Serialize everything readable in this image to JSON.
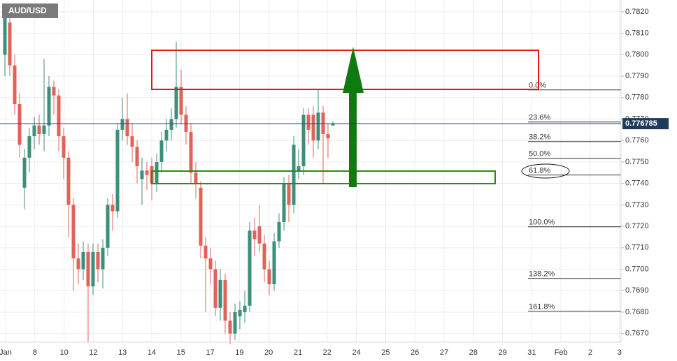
{
  "chart_data": {
    "type": "candlestick",
    "title": "AUD/USD",
    "up_color": "#3d8f7b",
    "down_color": "#e0635b",
    "grid": true,
    "ylim": [
      0.7666,
      0.78255
    ],
    "yticks": [
      {
        "value": 0.767,
        "label": "0.7670"
      },
      {
        "value": 0.768,
        "label": "0.7680"
      },
      {
        "value": 0.769,
        "label": "0.7690"
      },
      {
        "value": 0.77,
        "label": "0.7700"
      },
      {
        "value": 0.771,
        "label": "0.7710"
      },
      {
        "value": 0.772,
        "label": "0.7720"
      },
      {
        "value": 0.773,
        "label": "0.7730"
      },
      {
        "value": 0.774,
        "label": "0.7740"
      },
      {
        "value": 0.775,
        "label": "0.7750"
      },
      {
        "value": 0.776,
        "label": "0.7760"
      },
      {
        "value": 0.777,
        "label": "0.7770"
      },
      {
        "value": 0.778,
        "label": "0.7780"
      },
      {
        "value": 0.779,
        "label": "0.7790"
      },
      {
        "value": 0.78,
        "label": "0.7800"
      },
      {
        "value": 0.781,
        "label": "0.7810"
      },
      {
        "value": 0.782,
        "label": "0.7820"
      }
    ],
    "x_labels": [
      "Jan",
      "8",
      "10",
      "12",
      "13",
      "14",
      "15",
      "17",
      "19",
      "20",
      "21",
      "22",
      "24",
      "25",
      "26",
      "27",
      "28",
      "29",
      "31",
      "Feb",
      "2",
      "3"
    ],
    "open": [
      0.78,
      0.7815,
      0.7795,
      0.7777,
      0.7738,
      0.7752,
      0.7762,
      0.7767,
      0.7763,
      0.7767,
      0.7785,
      0.7781,
      0.7762,
      0.7752,
      0.773,
      0.7705,
      0.77,
      0.7708,
      0.7692,
      0.7708,
      0.77,
      0.771,
      0.773,
      0.7727,
      0.7765,
      0.777,
      0.7762,
      0.7757,
      0.7742,
      0.7746,
      0.7748,
      0.774,
      0.775,
      0.776,
      0.7765,
      0.777,
      0.7785,
      0.7772,
      0.7764,
      0.7745,
      0.7738,
      0.7711,
      0.7705,
      0.77,
      0.7682,
      0.7695,
      0.7676,
      0.767,
      0.7678,
      0.768,
      0.7683,
      0.7718,
      0.772,
      0.7712,
      0.77,
      0.7693,
      0.7713,
      0.7722,
      0.774,
      0.773,
      0.7746,
      0.7748,
      0.7772,
      0.7772,
      0.776,
      0.7773,
      0.7763,
      0.7767
    ],
    "high": [
      0.782,
      0.782,
      0.78,
      0.7782,
      0.7756,
      0.7766,
      0.7771,
      0.7772,
      0.7798,
      0.779,
      0.7788,
      0.7784,
      0.7766,
      0.7755,
      0.7733,
      0.7712,
      0.7713,
      0.7712,
      0.7712,
      0.7712,
      0.7714,
      0.7733,
      0.7735,
      0.7768,
      0.778,
      0.7782,
      0.7768,
      0.776,
      0.7752,
      0.775,
      0.7752,
      0.7754,
      0.7764,
      0.777,
      0.7775,
      0.7806,
      0.7793,
      0.7776,
      0.7768,
      0.775,
      0.7741,
      0.7715,
      0.771,
      0.7704,
      0.77,
      0.7698,
      0.768,
      0.7684,
      0.7685,
      0.769,
      0.7722,
      0.7724,
      0.773,
      0.7716,
      0.7704,
      0.7717,
      0.7726,
      0.7743,
      0.7744,
      0.7762,
      0.7756,
      0.7775,
      0.7775,
      0.7776,
      0.7784,
      0.7776,
      0.7768,
      0.7769
    ],
    "low": [
      0.779,
      0.779,
      0.7772,
      0.7752,
      0.7728,
      0.7745,
      0.7756,
      0.7758,
      0.7755,
      0.7762,
      0.7772,
      0.7755,
      0.7742,
      0.7715,
      0.769,
      0.7693,
      0.7695,
      0.7666,
      0.7688,
      0.7694,
      0.7691,
      0.7706,
      0.7718,
      0.7724,
      0.776,
      0.7758,
      0.775,
      0.774,
      0.773,
      0.7737,
      0.7732,
      0.7736,
      0.7745,
      0.7755,
      0.776,
      0.7766,
      0.7768,
      0.7758,
      0.774,
      0.7733,
      0.7705,
      0.768,
      0.7693,
      0.7678,
      0.7676,
      0.767,
      0.7665,
      0.7667,
      0.7672,
      0.7675,
      0.768,
      0.7706,
      0.7708,
      0.7694,
      0.7688,
      0.769,
      0.771,
      0.7718,
      0.7722,
      0.7726,
      0.7742,
      0.7744,
      0.7758,
      0.7752,
      0.7756,
      0.774,
      0.7752,
      0.7767
    ],
    "close": [
      0.7818,
      0.7795,
      0.7777,
      0.7758,
      0.7752,
      0.7762,
      0.7767,
      0.7763,
      0.7767,
      0.7785,
      0.7781,
      0.7762,
      0.7752,
      0.773,
      0.7705,
      0.77,
      0.7708,
      0.7692,
      0.7708,
      0.77,
      0.771,
      0.773,
      0.7727,
      0.7765,
      0.777,
      0.7762,
      0.7757,
      0.7748,
      0.7746,
      0.7744,
      0.774,
      0.775,
      0.776,
      0.7765,
      0.777,
      0.7785,
      0.7772,
      0.7764,
      0.7745,
      0.774,
      0.7711,
      0.7705,
      0.77,
      0.7682,
      0.7695,
      0.7676,
      0.767,
      0.768,
      0.7681,
      0.7683,
      0.7718,
      0.7714,
      0.7712,
      0.77,
      0.7693,
      0.7713,
      0.7722,
      0.774,
      0.773,
      0.7758,
      0.7748,
      0.7772,
      0.7765,
      0.776,
      0.7773,
      0.7763,
      0.7761,
      0.77678
    ],
    "current_price": 0.776785,
    "fib_levels": [
      {
        "label": "0.0%",
        "value": 0.77836
      },
      {
        "label": "23.6%",
        "value": 0.77686
      },
      {
        "label": "38.2%",
        "value": 0.77595
      },
      {
        "label": "50.0%",
        "value": 0.77517
      },
      {
        "label": "61.8%",
        "value": 0.77439
      },
      {
        "label": "100.0%",
        "value": 0.77198
      },
      {
        "label": "138.2%",
        "value": 0.76957
      },
      {
        "label": "161.8%",
        "value": 0.76804
      }
    ]
  }
}
